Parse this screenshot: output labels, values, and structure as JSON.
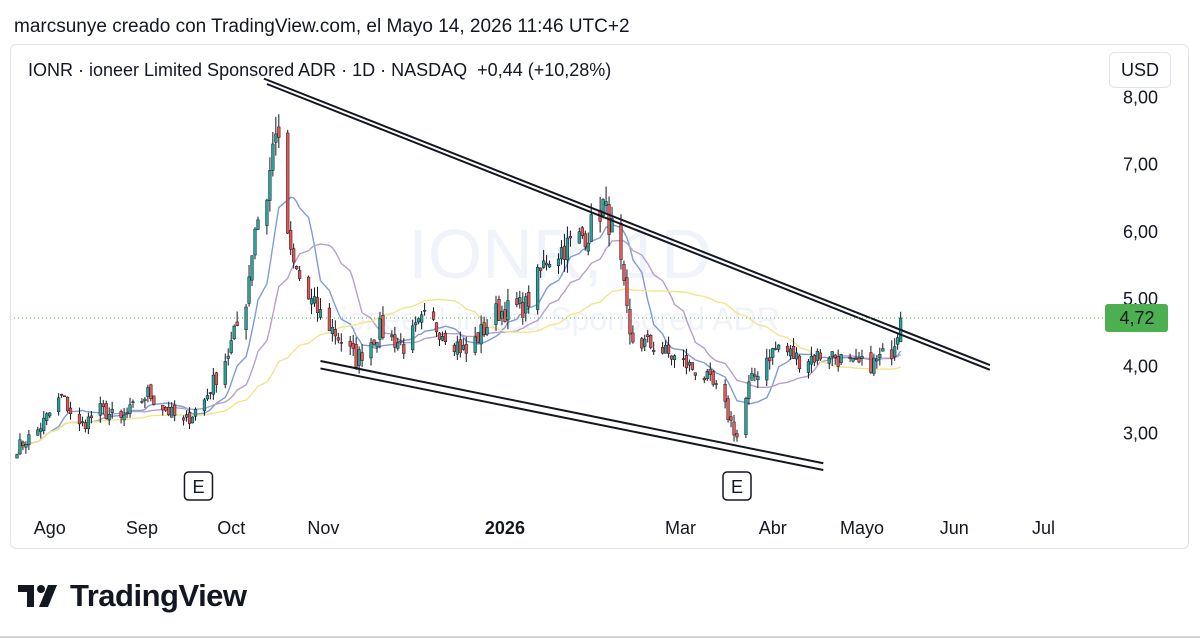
{
  "header": {
    "created_by": "marcsunye creado con TradingView.com, el Mayo 14, 2026 11:46 UTC+2"
  },
  "legend": {
    "symbol_line": "IONR · ioneer Limited Sponsored ADR · 1D · NASDAQ",
    "change": "+0,44 (+10,28%)"
  },
  "currency_button": "USD",
  "watermark": {
    "ticker": "IONR, 1D",
    "name": "ioneer Limited Sponsored ADR"
  },
  "brand": {
    "name": "TradingView"
  },
  "colors": {
    "up": "#26a69a",
    "down": "#ef5350",
    "ma_fast": "#7f9bd8",
    "ma_mid": "#b7a0c9",
    "ma_slow": "#f3e48c",
    "trendline": "#131722",
    "price_tag": "#4caf50"
  },
  "chart_data": {
    "type": "candlestick",
    "symbol": "IONR",
    "interval": "1D",
    "y_axis": {
      "ticks": [
        "3,00",
        "4,00",
        "5,00",
        "6,00",
        "7,00",
        "8,00"
      ],
      "tick_values": [
        3,
        4,
        5,
        6,
        7,
        8
      ],
      "range": [
        2.4,
        8.2
      ],
      "side": "right"
    },
    "x_axis": {
      "labels": [
        "Ago",
        "Sep",
        "Oct",
        "Nov",
        "2026",
        "Mar",
        "Abr",
        "Mayo",
        "Jun",
        "Jul"
      ],
      "label_dates": [
        "2025-08-01",
        "2025-09-01",
        "2025-10-01",
        "2025-11-01",
        "2026-01-01",
        "2026-03-01",
        "2026-04-01",
        "2026-05-01",
        "2026-06-01",
        "2026-07-01"
      ],
      "range": [
        "2025-07-20",
        "2026-07-20"
      ]
    },
    "last_price": {
      "value": 4.72,
      "label": "4,72"
    },
    "earnings_markers": [
      {
        "date": "2025-09-20",
        "label": "E"
      },
      {
        "date": "2026-03-20",
        "label": "E"
      }
    ],
    "trendlines": [
      {
        "name": "upper",
        "from": {
          "date": "2025-10-12",
          "value": 8.28
        },
        "to": {
          "date": "2026-06-13",
          "value": 4.02
        }
      },
      {
        "name": "upper-2",
        "from": {
          "date": "2025-10-13",
          "value": 8.2
        },
        "to": {
          "date": "2026-06-13",
          "value": 3.95
        }
      },
      {
        "name": "lower",
        "from": {
          "date": "2025-10-31",
          "value": 4.08
        },
        "to": {
          "date": "2026-04-18",
          "value": 2.56
        }
      },
      {
        "name": "lower-2",
        "from": {
          "date": "2025-10-31",
          "value": 3.97
        },
        "to": {
          "date": "2026-04-18",
          "value": 2.46
        }
      }
    ],
    "anchors": [
      [
        "2025-07-20",
        2.75
      ],
      [
        "2025-07-28",
        3.05
      ],
      [
        "2025-08-05",
        3.55
      ],
      [
        "2025-08-11",
        3.1
      ],
      [
        "2025-08-18",
        3.35
      ],
      [
        "2025-08-25",
        3.2
      ],
      [
        "2025-09-03",
        3.6
      ],
      [
        "2025-09-08",
        3.4
      ],
      [
        "2025-09-15",
        3.15
      ],
      [
        "2025-09-22",
        3.5
      ],
      [
        "2025-09-30",
        4.2
      ],
      [
        "2025-10-06",
        5.0
      ],
      [
        "2025-10-09",
        6.1
      ],
      [
        "2025-10-13",
        6.55
      ],
      [
        "2025-10-16",
        7.6
      ],
      [
        "2025-10-21",
        5.6
      ],
      [
        "2025-10-27",
        5.0
      ],
      [
        "2025-11-05",
        4.5
      ],
      [
        "2025-11-12",
        4.1
      ],
      [
        "2025-11-20",
        4.55
      ],
      [
        "2025-11-28",
        4.3
      ],
      [
        "2025-12-05",
        4.7
      ],
      [
        "2025-12-12",
        4.5
      ],
      [
        "2025-12-19",
        4.2
      ],
      [
        "2025-12-29",
        4.8
      ],
      [
        "2026-01-08",
        4.9
      ],
      [
        "2026-01-15",
        5.6
      ],
      [
        "2026-01-22",
        5.8
      ],
      [
        "2026-01-29",
        6.0
      ],
      [
        "2026-02-03",
        6.4
      ],
      [
        "2026-02-08",
        5.8
      ],
      [
        "2026-02-12",
        4.4
      ],
      [
        "2026-02-20",
        4.3
      ],
      [
        "2026-02-28",
        4.1
      ],
      [
        "2026-03-08",
        3.9
      ],
      [
        "2026-03-14",
        3.6
      ],
      [
        "2026-03-20",
        2.95
      ],
      [
        "2026-03-24",
        3.7
      ],
      [
        "2026-03-29",
        4.1
      ],
      [
        "2026-04-03",
        4.3
      ],
      [
        "2026-04-10",
        4.1
      ],
      [
        "2026-04-20",
        4.2
      ],
      [
        "2026-04-28",
        4.0
      ],
      [
        "2026-05-05",
        4.05
      ],
      [
        "2026-05-11",
        4.25
      ],
      [
        "2026-05-14",
        4.72
      ]
    ]
  }
}
